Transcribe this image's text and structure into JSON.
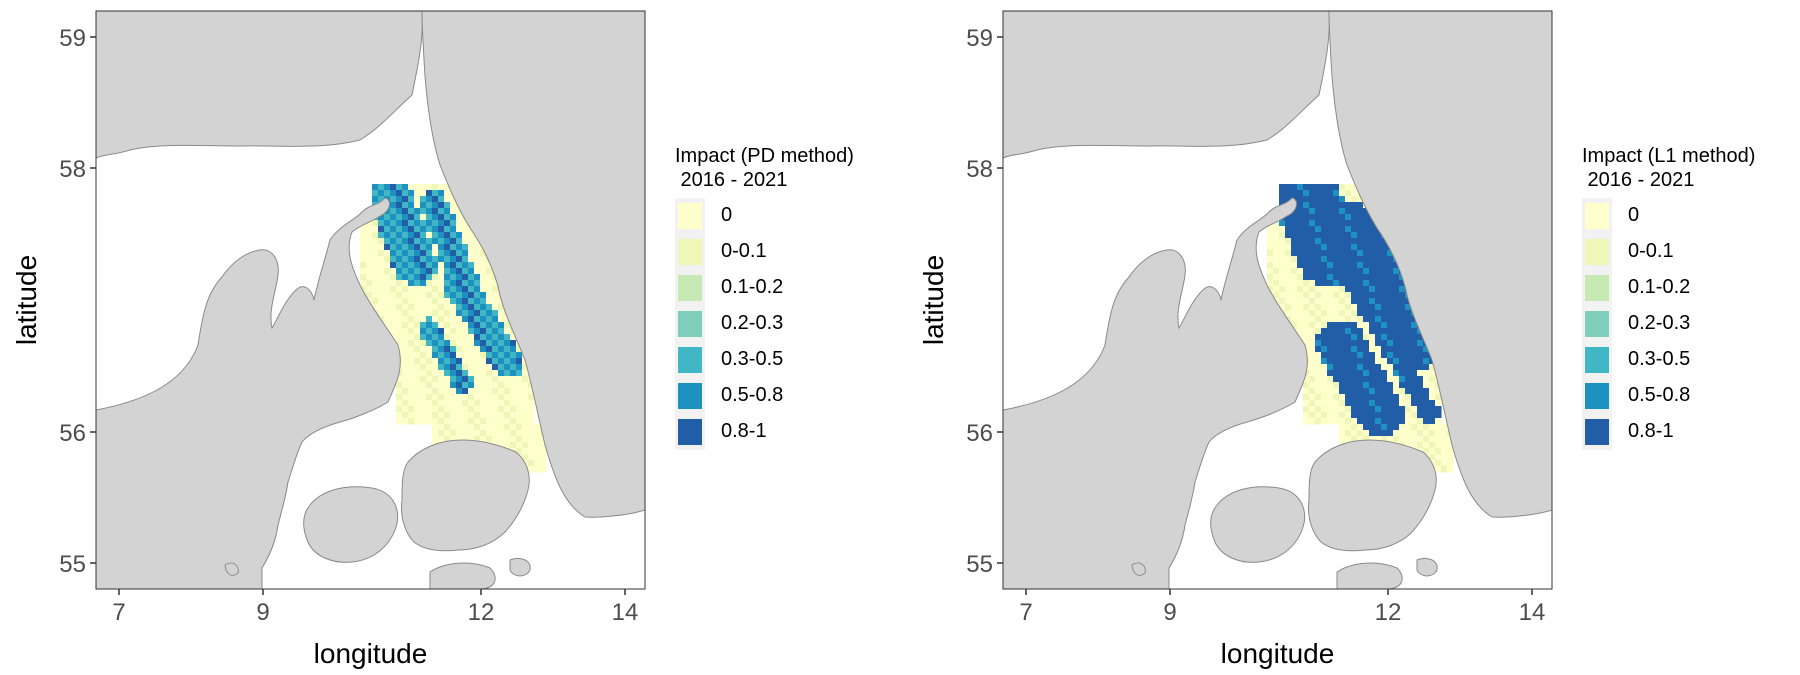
{
  "panels": [
    {
      "legend_title": "Impact (PD method)\n 2016 - 2021",
      "x_label": "longitude",
      "y_label": "latitude"
    },
    {
      "legend_title": "Impact (L1 method)\n 2016 - 2021",
      "x_label": "longitude",
      "y_label": "latitude"
    }
  ],
  "x_ticks": [
    "7",
    "9",
    "12",
    "14"
  ],
  "y_ticks": [
    "59",
    "58",
    "56",
    "55"
  ],
  "legend_items": [
    {
      "label": "0",
      "color": "#ffffcc"
    },
    {
      "label": "0-0.1",
      "color": "#eef6b8"
    },
    {
      "label": "0.1-0.2",
      "color": "#c7e9b4"
    },
    {
      "label": "0.2-0.3",
      "color": "#7fcdbb"
    },
    {
      "label": "0.3-0.5",
      "color": "#41b6c4"
    },
    {
      "label": "0.5-0.8",
      "color": "#1d91c0"
    },
    {
      "label": "0.8-1",
      "color": "#225ea8"
    }
  ],
  "colors": {
    "land": "#d3d3d3",
    "coast": "#8a8a8a",
    "sea": "#ffffff"
  }
}
